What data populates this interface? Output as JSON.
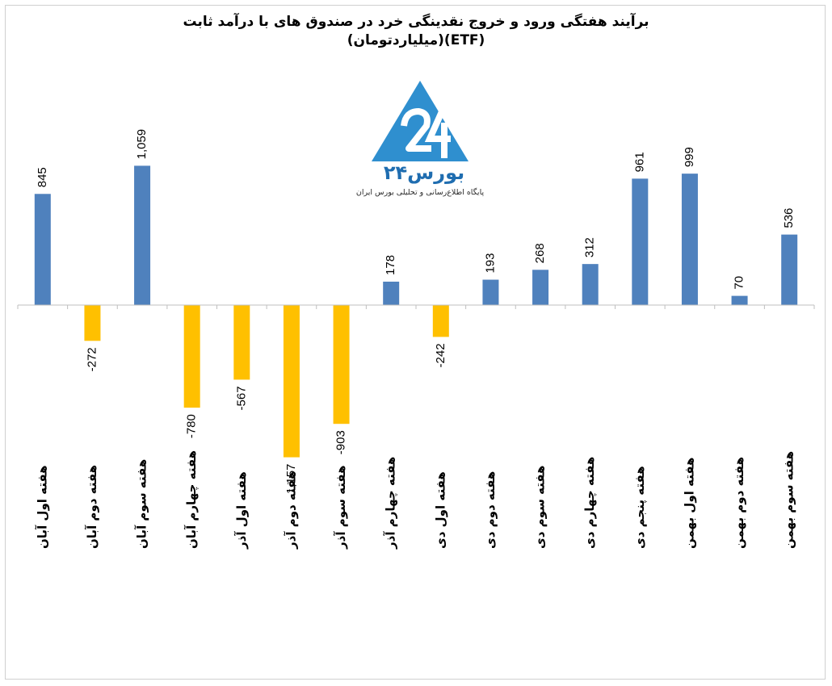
{
  "title_line1": "برآیند هفتگی ورود و خروج نقدینگی خرد در صندوق های با درآمد ثابت",
  "title_line2": "(ETF)(میلیاردتومان)",
  "logo": {
    "name": "بورس۲۴",
    "tagline": "پایگاه اطلاع‌رسانی و تحلیلی بورس ایران",
    "icon": "bourse24-triangle-logo",
    "color": "#2f8fcf"
  },
  "chart_data": {
    "type": "bar",
    "title": "برآیند هفتگی ورود و خروج نقدینگی خرد در صندوق های با درآمد ثابت (ETF)(میلیاردتومان)",
    "categories": [
      "هفته اول آبان",
      "هفته دوم آبان",
      "هفته سوم آبان",
      "هفته چهارم آبان",
      "هفته اول آذر",
      "هفته دوم آذر",
      "هفته سوم آذر",
      "هفته چهارم آذر",
      "هفته اول دی",
      "هفته دوم دی",
      "هفته سوم دی",
      "هفته چهارم دی",
      "هفته پنجم دی",
      "هفته اول بهمن",
      "هفته دوم بهمن",
      "هفته سوم بهمن"
    ],
    "values": [
      845,
      -272,
      1059,
      -780,
      -567,
      -1157,
      -903,
      178,
      -242,
      193,
      268,
      312,
      961,
      999,
      70,
      536
    ],
    "labels": [
      "845",
      "-272",
      "1,059",
      "-780",
      "-567",
      "-1,157",
      "-903",
      "178",
      "-242",
      "193",
      "268",
      "312",
      "961",
      "999",
      "70",
      "536"
    ],
    "positive_color": "#4f81bd",
    "negative_color": "#ffc000",
    "grid": false,
    "legend": "none"
  }
}
